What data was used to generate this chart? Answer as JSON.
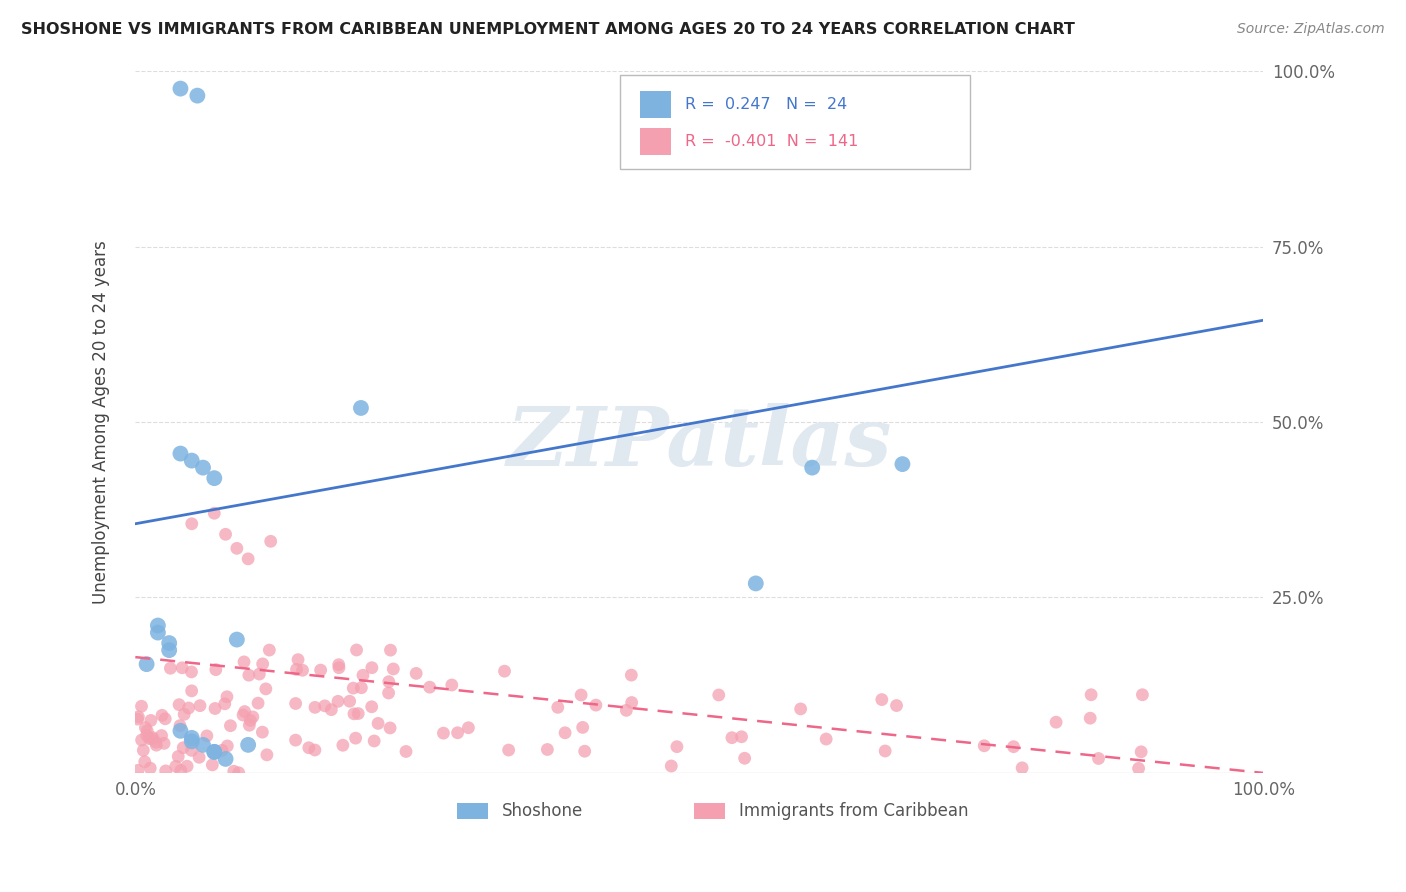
{
  "title": "SHOSHONE VS IMMIGRANTS FROM CARIBBEAN UNEMPLOYMENT AMONG AGES 20 TO 24 YEARS CORRELATION CHART",
  "source": "Source: ZipAtlas.com",
  "ylabel": "Unemployment Among Ages 20 to 24 years",
  "xlim": [
    0.0,
    1.0
  ],
  "ylim": [
    0.0,
    1.0
  ],
  "xtick_positions": [
    0.0,
    0.25,
    0.5,
    0.75,
    1.0
  ],
  "xtick_labels": [
    "0.0%",
    "",
    "",
    "",
    "100.0%"
  ],
  "ytick_positions": [
    0.0,
    0.25,
    0.5,
    0.75,
    1.0
  ],
  "ytick_labels": [
    "",
    "25.0%",
    "50.0%",
    "75.0%",
    "100.0%"
  ],
  "ytick_labels_right": [
    "",
    "25.0%",
    "50.0%",
    "75.0%",
    "100.0%"
  ],
  "shoshone_color": "#7eb3e0",
  "caribbean_color": "#f4a0b0",
  "shoshone_R": 0.247,
  "shoshone_N": 24,
  "caribbean_R": -0.401,
  "caribbean_N": 141,
  "legend_label_1": "Shoshone",
  "legend_label_2": "Immigrants from Caribbean",
  "watermark": "ZIPatlas",
  "bg_color": "#ffffff",
  "grid_color": "#dddddd",
  "line_blue": "#4477cc",
  "line_pink": "#ee6688",
  "blue_line_x0": 0.0,
  "blue_line_y0": 0.355,
  "blue_line_x1": 1.0,
  "blue_line_y1": 0.645,
  "pink_line_x0": 0.0,
  "pink_line_y0": 0.165,
  "pink_line_x1": 1.0,
  "pink_line_y1": 0.0
}
